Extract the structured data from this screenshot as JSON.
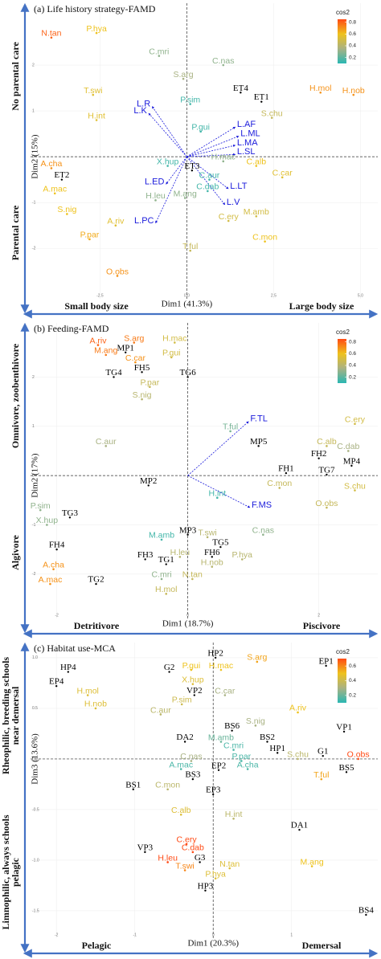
{
  "chart_data": [
    {
      "type": "scatter",
      "title": "(a) Life history strategy-FAMD",
      "x_label": "Dim1 (41.3%)",
      "y_label": "Dim2 (15%)",
      "xlim": [
        -4.5,
        5.5
      ],
      "ylim": [
        -3.1,
        3.35
      ],
      "xticks": [
        -2.5,
        {
          "value": 0,
          "label": "0.0"
        },
        2.5,
        {
          "value": 5,
          "label": "5.0"
        }
      ],
      "yticks": [
        2,
        1,
        0,
        -1,
        -2
      ],
      "grid": true,
      "labels": [
        "N.tan",
        "P.hya",
        "C.mri",
        "C.nas",
        "S.arg",
        "T.swi",
        "H.int",
        "P.sim",
        "H.mol",
        "H.nob",
        "S.chu",
        "P.gui",
        "X.hup",
        "H.mac",
        "C.alb",
        "C.car",
        "C.aur",
        "C.dab",
        "M.ang",
        "H.leu",
        "A.cha",
        "A.mac",
        "S.nig",
        "A.riv",
        "P.par",
        "T.ful",
        "C.ery",
        "M.amb",
        "C.mon",
        "O.obs"
      ],
      "x": [
        -3.9,
        -2.6,
        -0.8,
        1.05,
        -0.1,
        -2.7,
        -2.6,
        0.1,
        3.85,
        4.8,
        2.45,
        0.4,
        -0.55,
        1.05,
        2.0,
        2.75,
        0.65,
        0.6,
        -0.05,
        -0.9,
        -3.9,
        -3.8,
        -3.45,
        -2.05,
        -2.8,
        0.1,
        1.2,
        2.0,
        2.25,
        -2.0
      ],
      "values": [
        2.6,
        2.7,
        2.2,
        2.0,
        1.7,
        1.35,
        0.8,
        1.15,
        1.4,
        1.35,
        0.85,
        0.55,
        -0.2,
        -0.1,
        -0.2,
        -0.45,
        -0.5,
        -0.75,
        -0.9,
        -0.95,
        -0.25,
        -0.8,
        -1.25,
        -1.5,
        -1.8,
        -2.05,
        -1.4,
        -1.3,
        -1.85,
        -2.6
      ],
      "cos2": [
        0.8,
        0.6,
        0.3,
        0.3,
        0.35,
        0.55,
        0.55,
        0.15,
        0.7,
        0.7,
        0.45,
        0.15,
        0.15,
        0.3,
        0.6,
        0.55,
        0.15,
        0.15,
        0.3,
        0.3,
        0.7,
        0.6,
        0.6,
        0.55,
        0.65,
        0.45,
        0.5,
        0.5,
        0.6,
        0.7
      ],
      "color_scale": {
        "title": "cos2",
        "lim": [
          0.1,
          0.85
        ],
        "ticks": [
          0.8,
          0.6,
          0.4,
          0.2
        ],
        "colors": [
          "#2ab7b3",
          "#a9b283",
          "#eec21c",
          "#ff4a14"
        ]
      },
      "supplementary": {
        "labels": [
          "ET4",
          "ET1",
          "ET3",
          "ET2"
        ],
        "x": [
          1.55,
          2.15,
          0.15,
          -3.6
        ],
        "values": [
          1.4,
          1.2,
          -0.3,
          -0.5
        ],
        "color": "#000000"
      },
      "arrows": {
        "labels": [
          "L.R",
          "L.K",
          "L.AF",
          "L.ML",
          "L.MA",
          "L.SL",
          "L.ED",
          "L.LT",
          "L.V",
          "L.PC"
        ],
        "x": [
          -1.0,
          -1.1,
          1.4,
          1.5,
          1.4,
          1.4,
          -0.6,
          1.2,
          1.1,
          -0.9
        ],
        "values": [
          1.1,
          0.95,
          0.65,
          0.45,
          0.25,
          0.05,
          -0.6,
          -0.7,
          -1.05,
          -1.45
        ],
        "color": "#1a1adb"
      },
      "y_side_labels": [
        [
          "No parental care"
        ],
        [
          "Parental care"
        ]
      ],
      "x_side_labels": [
        "Small body size",
        "Large body size"
      ],
      "side_color": "#4472c4"
    },
    {
      "type": "scatter",
      "title": "(b) Feeding-FAMD",
      "x_label": "Dim1 (18.7%)",
      "y_label": "Dim2 (17%)",
      "xlim": [
        -2.4,
        2.9
      ],
      "ylim": [
        -2.9,
        3.1
      ],
      "xticks": [
        -2,
        0,
        2
      ],
      "yticks": [
        2,
        1,
        0,
        -1,
        -2
      ],
      "grid": true,
      "labels": [
        "A.riv",
        "S.arg",
        "H.mac",
        "M.ang",
        "C.car",
        "P.gui",
        "P.par",
        "S.nig",
        "T.ful",
        "C.ery",
        "C.alb",
        "C.dab",
        "C.aur",
        "C.mon",
        "S.chu",
        "H.int",
        "O.obs",
        "P.sim",
        "X.hup",
        "C.nas",
        "M.amb",
        "T.swi",
        "H.leu",
        "P.hya",
        "H.nob",
        "A.cha",
        "C.mri",
        "N.tan",
        "A.mac",
        "H.mol"
      ],
      "x": [
        -1.37,
        -0.82,
        -0.2,
        -1.25,
        -0.8,
        -0.25,
        -0.58,
        -0.7,
        0.65,
        2.55,
        2.12,
        2.45,
        -1.25,
        1.4,
        2.55,
        0.45,
        2.12,
        -2.25,
        -2.15,
        1.15,
        -0.4,
        0.3,
        -0.12,
        0.83,
        0.37,
        -2.05,
        -0.4,
        0.07,
        -2.1,
        -0.33
      ],
      "values": [
        2.65,
        2.7,
        2.7,
        2.45,
        2.3,
        2.4,
        1.8,
        1.55,
        0.9,
        1.05,
        0.6,
        0.5,
        0.6,
        -0.25,
        -0.3,
        -0.45,
        -0.65,
        -0.7,
        -1.0,
        -1.2,
        -1.3,
        -1.25,
        -1.65,
        -1.7,
        -1.85,
        -1.9,
        -2.1,
        -2.1,
        -2.2,
        -2.4
      ],
      "cos2": [
        0.8,
        0.75,
        0.5,
        0.75,
        0.7,
        0.5,
        0.45,
        0.4,
        0.25,
        0.5,
        0.45,
        0.35,
        0.35,
        0.45,
        0.5,
        0.15,
        0.45,
        0.3,
        0.3,
        0.3,
        0.15,
        0.4,
        0.4,
        0.4,
        0.4,
        0.7,
        0.3,
        0.45,
        0.7,
        0.45
      ],
      "color_scale": {
        "title": "cos2",
        "lim": [
          0.1,
          0.85
        ],
        "ticks": [
          0.8,
          0.6,
          0.4,
          0.2
        ],
        "colors": [
          "#2ab7b3",
          "#a9b283",
          "#eec21c",
          "#ff4a14"
        ]
      },
      "supplementary": {
        "labels": [
          "MP1",
          "TG4",
          "FH5",
          "TG6",
          "MP5",
          "FH2",
          "MP4",
          "FH1",
          "TG7",
          "MP2",
          "TG3",
          "MP3",
          "TG5",
          "FH4",
          "FH6",
          "FH3",
          "TG1",
          "TG2"
        ],
        "x": [
          -0.95,
          -1.13,
          -0.7,
          0,
          1.08,
          2.0,
          2.5,
          1.5,
          2.12,
          -0.6,
          -1.8,
          0,
          0.5,
          -2.0,
          0.37,
          -0.65,
          -0.33,
          -1.4
        ],
        "values": [
          2.5,
          2.0,
          2.1,
          2.0,
          0.6,
          0.35,
          0.2,
          0.05,
          0.02,
          -0.2,
          -0.85,
          -1.2,
          -1.45,
          -1.5,
          -1.65,
          -1.7,
          -1.8,
          -2.2
        ],
        "color": "#000000"
      },
      "arrows": {
        "labels": [
          "F.TL",
          "F.MS"
        ],
        "x": [
          0.93,
          0.95
        ],
        "values": [
          1.1,
          -0.65
        ],
        "color": "#1a1adb"
      },
      "y_side_labels": [
        [
          "Omnivore, zoobenthivore"
        ],
        [
          "Algivore"
        ]
      ],
      "x_side_labels": [
        "Detritivore",
        "Piscivore"
      ],
      "side_color": "#4472c4"
    },
    {
      "type": "scatter",
      "title": "(c) Habitat use-MCA",
      "x_label": "Dim1 (20.3%)",
      "y_label": "Dim3 (13.6%)",
      "xlim": [
        -2.33,
        2.1
      ],
      "ylim": [
        -1.77,
        1.15
      ],
      "xticks": [
        -2,
        -1,
        0,
        1
      ],
      "yticks": [
        {
          "value": 1,
          "label": "1.0"
        },
        0.5,
        {
          "value": 0,
          "label": "0.0"
        },
        -0.5,
        {
          "value": -1,
          "label": "-1.0"
        },
        -1.5
      ],
      "grid": true,
      "labels": [
        "P.gui",
        "H.mac",
        "S.arg",
        "H.mol",
        "X.hup",
        "C.car",
        "P.sim",
        "H.nob",
        "C.aur",
        "A.riv",
        "S.nig",
        "M.amb",
        "C.mri",
        "S.chu",
        "O.obs",
        "C.nas",
        "P.par",
        "A.cha",
        "A.mac",
        "T.ful",
        "C.mon",
        "C.alb",
        "H.int",
        "C.ery",
        "C.dab",
        "H.leu",
        "T.swi",
        "N.tan",
        "M.ang",
        "P.hya"
      ],
      "x": [
        -0.28,
        0.1,
        0.56,
        -1.6,
        -0.26,
        0.15,
        -0.4,
        -1.5,
        -0.67,
        1.08,
        0.54,
        0.1,
        0.26,
        1.08,
        1.85,
        -0.28,
        0.36,
        0.44,
        -0.41,
        1.38,
        -0.58,
        -0.41,
        0.26,
        -0.34,
        -0.26,
        -0.58,
        -0.36,
        0.21,
        1.26,
        0.03
      ],
      "values": [
        0.88,
        0.88,
        0.96,
        0.63,
        0.74,
        0.63,
        0.54,
        0.5,
        0.44,
        0.46,
        0.33,
        0.17,
        0.09,
        0.0,
        0.0,
        -0.02,
        -0.02,
        -0.1,
        -0.1,
        -0.2,
        -0.3,
        -0.55,
        -0.59,
        -0.84,
        -0.92,
        -1.02,
        -1.1,
        -1.08,
        -1.06,
        -1.18
      ],
      "cos2": [
        0.5,
        0.5,
        0.55,
        0.45,
        0.45,
        0.3,
        0.4,
        0.45,
        0.35,
        0.5,
        0.3,
        0.2,
        0.15,
        0.35,
        0.7,
        0.3,
        0.15,
        0.15,
        0.15,
        0.55,
        0.35,
        0.45,
        0.35,
        0.7,
        0.7,
        0.7,
        0.6,
        0.45,
        0.5,
        0.45
      ],
      "color_scale": {
        "title": "cos2",
        "lim": [
          0.1,
          0.7
        ],
        "ticks": [
          0.6,
          0.4,
          0.2
        ],
        "colors": [
          "#2ab7b3",
          "#a9b283",
          "#eec21c",
          "#ff4a14"
        ]
      },
      "supplementary": {
        "labels": [
          "HP4",
          "EP4",
          "G2",
          "HP2",
          "EP1",
          "VP2",
          "BS6",
          "VP1",
          "DA2",
          "BS2",
          "HP1",
          "G1",
          "EP2",
          "BS5",
          "BS3",
          "BS1",
          "EP3",
          "DA1",
          "VP3",
          "G3",
          "HP3",
          "BS4"
        ],
        "x": [
          -1.85,
          -2.0,
          -0.56,
          0.03,
          1.44,
          -0.24,
          0.24,
          1.67,
          -0.36,
          0.69,
          0.82,
          1.4,
          0.07,
          1.7,
          -0.26,
          -1.02,
          0,
          1.1,
          -0.87,
          -0.17,
          -0.1,
          1.95
        ],
        "values": [
          0.86,
          0.72,
          0.86,
          1.0,
          0.92,
          0.63,
          0.28,
          0.27,
          0.17,
          0.17,
          0.06,
          0.03,
          -0.11,
          -0.13,
          -0.2,
          -0.3,
          -0.35,
          -0.7,
          -0.92,
          -1.02,
          -1.3,
          -1.54
        ],
        "color": "#000000"
      },
      "y_side_labels": [
        [
          "Rheophilic, breeding schools",
          "near demersal"
        ],
        [
          "Limnophilic, always schools",
          "pelagic"
        ]
      ],
      "x_side_labels": [
        "Pelagic",
        "Demersal"
      ],
      "side_color": "#4472c4"
    }
  ]
}
